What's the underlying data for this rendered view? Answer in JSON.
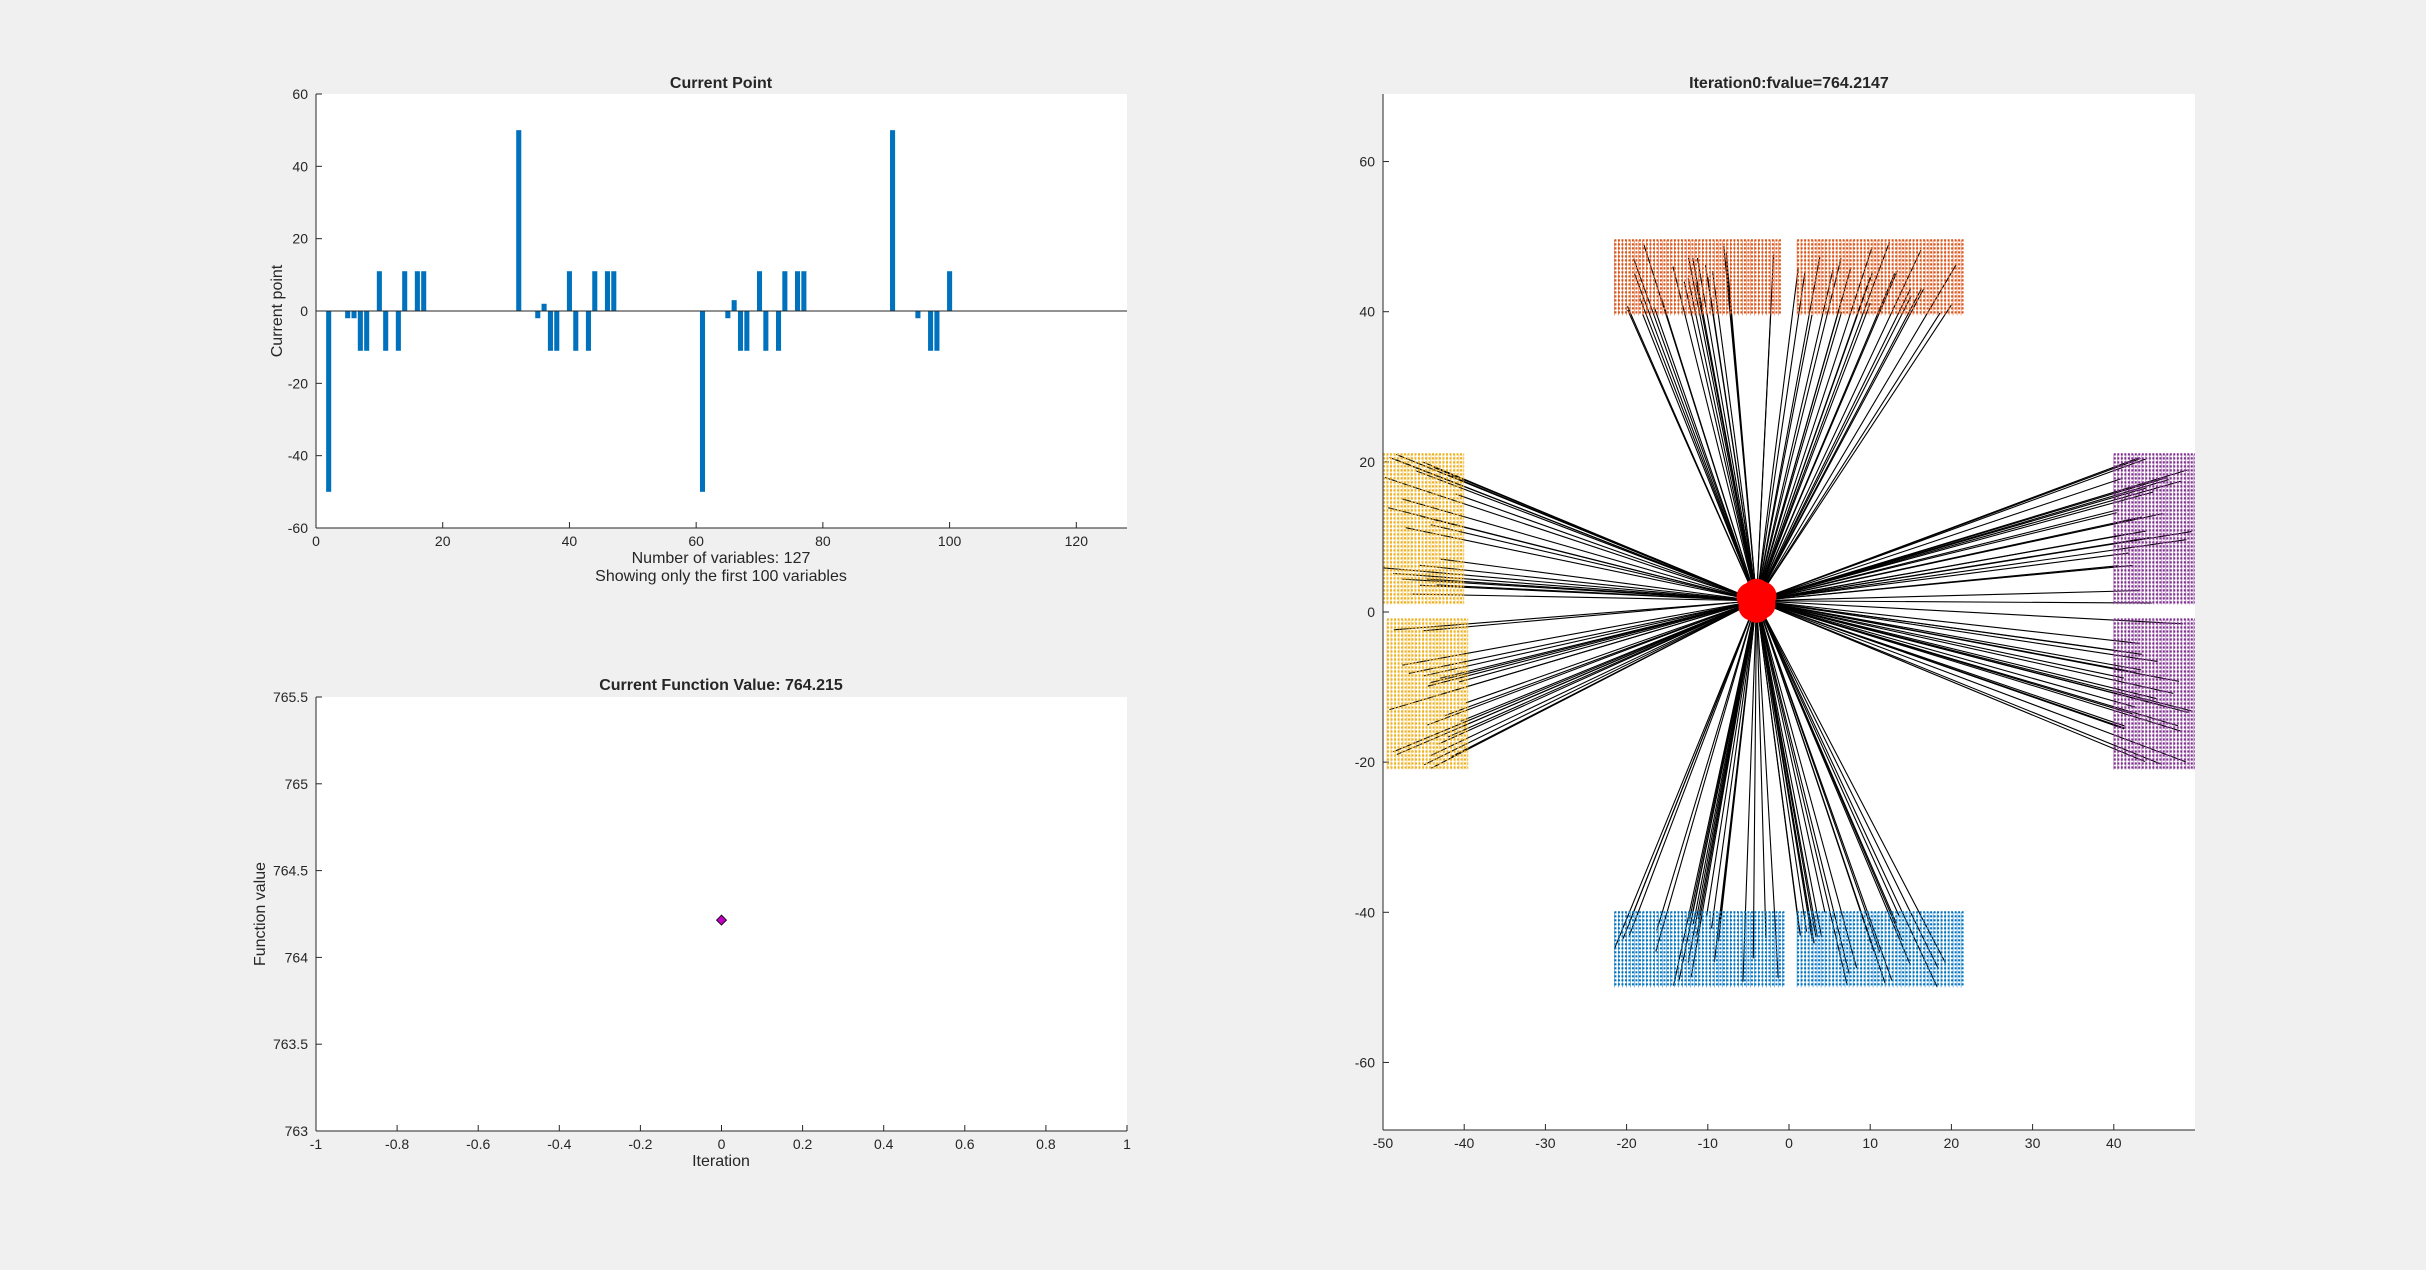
{
  "chart_data": [
    {
      "type": "bar",
      "title": "Current Point",
      "xlabel": "Number of variables: 127",
      "xlabel2": "Showing only the first 100 variables",
      "ylabel": "Current point",
      "xlim": [
        0,
        128
      ],
      "ylim": [
        -60,
        60
      ],
      "xticks": [
        0,
        20,
        40,
        60,
        80,
        100,
        120
      ],
      "yticks": [
        -60,
        -40,
        -20,
        0,
        20,
        40,
        60
      ],
      "color": "#0072BD",
      "x": [
        2,
        5,
        6,
        7,
        8,
        10,
        11,
        13,
        14,
        16,
        17,
        32,
        35,
        36,
        37,
        38,
        40,
        41,
        43,
        44,
        46,
        47,
        61,
        65,
        66,
        67,
        68,
        70,
        71,
        73,
        74,
        76,
        77,
        91,
        95,
        97,
        98,
        100
      ],
      "values": [
        -50,
        -2,
        -2,
        -11,
        -11,
        11,
        -11,
        -11,
        11,
        11,
        11,
        50,
        -2,
        2,
        -11,
        -11,
        11,
        -11,
        -11,
        11,
        11,
        11,
        -50,
        -2,
        3,
        -11,
        -11,
        11,
        -11,
        -11,
        11,
        11,
        11,
        50,
        -2,
        -11,
        -11,
        11
      ]
    },
    {
      "type": "scatter",
      "title": "Current Function Value: 764.215",
      "xlabel": "Iteration",
      "ylabel": "Function value",
      "xlim": [
        -1,
        1
      ],
      "ylim": [
        763,
        765.5
      ],
      "xticks": [
        -1,
        -0.8,
        -0.6,
        -0.4,
        -0.2,
        0,
        0.2,
        0.4,
        0.6,
        0.8,
        1
      ],
      "yticks": [
        763,
        763.5,
        764,
        764.5,
        765,
        765.5
      ],
      "marker": "diamond",
      "color": "#C000C0",
      "points": [
        [
          0,
          764.215
        ]
      ]
    },
    {
      "type": "scatter",
      "title": "Iteration0:fvalue=764.2147",
      "xlim": [
        -50,
        50
      ],
      "ylim": [
        -69,
        69
      ],
      "xticks": [
        -50,
        -40,
        -30,
        -20,
        -10,
        0,
        10,
        20,
        30,
        40
      ],
      "yticks": [
        -60,
        -40,
        -20,
        0,
        20,
        40,
        60
      ],
      "center": [
        -4,
        1.5
      ],
      "center_color": "#FF0000",
      "line_color": "#000000",
      "groups": [
        {
          "color": "#D95319",
          "x_range": [
            -21.5,
            -1
          ],
          "y_range": [
            39.5,
            49.5
          ]
        },
        {
          "color": "#D95319",
          "x_range": [
            1,
            21.5
          ],
          "y_range": [
            39.5,
            49.5
          ]
        },
        {
          "color": "#EDB120",
          "x_range": [
            -50,
            -40
          ],
          "y_range": [
            1,
            21
          ]
        },
        {
          "color": "#EDB120",
          "x_range": [
            -49.5,
            -39.5
          ],
          "y_range": [
            -21,
            -1
          ]
        },
        {
          "color": "#7E2F8E",
          "x_range": [
            40,
            50
          ],
          "y_range": [
            1,
            21
          ]
        },
        {
          "color": "#7E2F8E",
          "x_range": [
            40,
            50
          ],
          "y_range": [
            -21,
            -1
          ]
        },
        {
          "color": "#0072BD",
          "x_range": [
            -21.5,
            -0.5
          ],
          "y_range": [
            -50,
            -40
          ]
        },
        {
          "color": "#0072BD",
          "x_range": [
            1,
            21.5
          ],
          "y_range": [
            -50,
            -40
          ]
        }
      ],
      "rays_per_group": 24
    }
  ]
}
